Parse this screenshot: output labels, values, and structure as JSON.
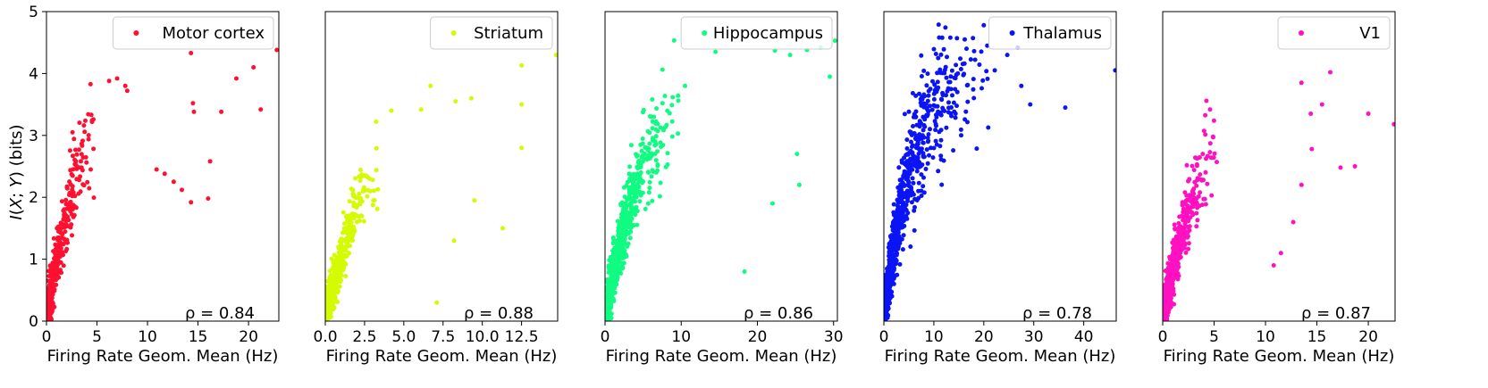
{
  "shared": {
    "ylabel": "I(X; Y) (bits)",
    "xlabel": "Firing Rate Geom. Mean (Hz)",
    "ylim": [
      0,
      5
    ],
    "yticks": [
      "0",
      "1",
      "2",
      "3",
      "4",
      "5"
    ]
  },
  "chart_data": [
    {
      "type": "scatter",
      "title": "",
      "xlabel": "Firing Rate Geom. Mean (Hz)",
      "ylabel": "I(X; Y) (bits)",
      "xlim": [
        0,
        23
      ],
      "ylim": [
        0,
        5
      ],
      "xticks": [
        0,
        5,
        10,
        15,
        20
      ],
      "xtick_labels": [
        "0",
        "5",
        "10",
        "15",
        "20"
      ],
      "legend": "top-right",
      "annotation": "ρ = 0.84",
      "series": [
        {
          "name": "Motor cortex",
          "color": "#ff1030",
          "n": 700,
          "xmax": 23,
          "growth": 4.2,
          "decay": 4,
          "ymax": 4.3,
          "noise": 0.33,
          "shape": 0.6,
          "xscale": 1.4,
          "outliers": [
            [
              14.3,
              4.33
            ],
            [
              20.5,
              4.1
            ],
            [
              22.8,
              4.38
            ],
            [
              18.8,
              3.92
            ],
            [
              17.3,
              3.38
            ],
            [
              21.2,
              3.42
            ],
            [
              14.5,
              3.52
            ],
            [
              14.6,
              3.38
            ],
            [
              16.2,
              2.58
            ],
            [
              14.3,
              1.92
            ],
            [
              16,
              1.98
            ],
            [
              13.4,
              2.12
            ],
            [
              12.6,
              2.25
            ],
            [
              11.7,
              2.38
            ],
            [
              10.9,
              2.45
            ],
            [
              6.2,
              3.88
            ],
            [
              7,
              3.92
            ],
            [
              7.8,
              3.8
            ],
            [
              8,
              3.72
            ]
          ]
        }
      ]
    },
    {
      "type": "scatter",
      "title": "",
      "xlabel": "Firing Rate Geom. Mean (Hz)",
      "ylabel": "I(X; Y) (bits)",
      "xlim": [
        0,
        14.8
      ],
      "ylim": [
        0,
        5
      ],
      "xticks": [
        0,
        2.5,
        5,
        7.5,
        10,
        12.5
      ],
      "xtick_labels": [
        "0.0",
        "2.5",
        "5.0",
        "7.5",
        "10.0",
        "12.5"
      ],
      "legend": "top-right",
      "annotation": "ρ = 0.88",
      "series": [
        {
          "name": "Striatum",
          "color": "#d4fb00",
          "n": 650,
          "xmax": 14.8,
          "growth": 3.8,
          "decay": 3.2,
          "ymax": 3.9,
          "noise": 0.3,
          "shape": 0.5,
          "xscale": 1.2,
          "outliers": [
            [
              12.5,
              4.13
            ],
            [
              14.7,
              4.3
            ],
            [
              12.5,
              3.5
            ],
            [
              12.5,
              2.8
            ],
            [
              11.3,
              1.5
            ],
            [
              9.5,
              1.95
            ],
            [
              9.3,
              3.6
            ],
            [
              8.3,
              3.55
            ],
            [
              6.7,
              3.8
            ],
            [
              6.1,
              3.42
            ],
            [
              8.2,
              1.3
            ],
            [
              4.2,
              3.4
            ],
            [
              7.1,
              0.3
            ]
          ]
        }
      ]
    },
    {
      "type": "scatter",
      "title": "",
      "xlabel": "Firing Rate Geom. Mean (Hz)",
      "ylabel": "I(X; Y) (bits)",
      "xlim": [
        0,
        30.5
      ],
      "ylim": [
        0,
        5
      ],
      "xticks": [
        0,
        10,
        20,
        30
      ],
      "xtick_labels": [
        "0",
        "10",
        "20",
        "30"
      ],
      "legend": "top-right",
      "annotation": "ρ = 0.86",
      "series": [
        {
          "name": "Hippocampus",
          "color": "#10fb82",
          "n": 950,
          "xmax": 30.5,
          "growth": 8.5,
          "decay": 5.5,
          "ymax": 4.1,
          "noise": 0.32,
          "shape": 0.55,
          "xscale": 3.2,
          "outliers": [
            [
              30.2,
              4.53
            ],
            [
              28.3,
              4.42
            ],
            [
              26.5,
              4.38
            ],
            [
              24.3,
              4.3
            ],
            [
              22.3,
              4.37
            ],
            [
              29.5,
              3.95
            ],
            [
              25.2,
              2.7
            ],
            [
              25.5,
              2.2
            ],
            [
              22,
              1.9
            ],
            [
              18.3,
              0.8
            ],
            [
              14.5,
              4.35
            ],
            [
              10.5,
              3.8
            ]
          ]
        }
      ]
    },
    {
      "type": "scatter",
      "title": "",
      "xlabel": "Firing Rate Geom. Mean (Hz)",
      "ylabel": "I(X; Y) (bits)",
      "xlim": [
        0,
        46.5
      ],
      "ylim": [
        0,
        5
      ],
      "xticks": [
        0,
        10,
        20,
        30,
        40
      ],
      "xtick_labels": [
        "0",
        "10",
        "20",
        "30",
        "40"
      ],
      "legend": "top-right",
      "annotation": "ρ = 0.78",
      "series": [
        {
          "name": "Thalamus",
          "color": "#0a14f5",
          "n": 1000,
          "xmax": 46.5,
          "growth": 8.5,
          "decay": 6,
          "ymax": 4.2,
          "noise": 0.36,
          "shape": 0.75,
          "xscale": 5,
          "outliers": [
            [
              46.3,
              4.05
            ],
            [
              36.3,
              3.45
            ],
            [
              29.3,
              3.5
            ],
            [
              27.5,
              3.8
            ],
            [
              20,
              4.78
            ],
            [
              26.8,
              4.42
            ],
            [
              24.7,
              4.3
            ],
            [
              22.2,
              4.05
            ]
          ]
        }
      ]
    },
    {
      "type": "scatter",
      "title": "",
      "xlabel": "Firing Rate Geom. Mean (Hz)",
      "ylabel": "I(X; Y) (bits)",
      "xlim": [
        0,
        22.6
      ],
      "ylim": [
        0,
        5
      ],
      "xticks": [
        0,
        5,
        10,
        15,
        20
      ],
      "xtick_labels": [
        "0",
        "5",
        "10",
        "15",
        "20"
      ],
      "legend": "top-right",
      "annotation": "ρ = 0.87",
      "series": [
        {
          "name": "V1",
          "color": "#ff10c0",
          "n": 800,
          "xmax": 22.6,
          "growth": 5.5,
          "decay": 3.6,
          "ymax": 3.5,
          "noise": 0.3,
          "shape": 0.6,
          "xscale": 1.6,
          "outliers": [
            [
              22.5,
              3.18
            ],
            [
              20,
              3.35
            ],
            [
              16.3,
              4.02
            ],
            [
              15.5,
              3.5
            ],
            [
              14.4,
              3.35
            ],
            [
              13.5,
              3.85
            ],
            [
              18.7,
              2.5
            ],
            [
              17.3,
              2.48
            ],
            [
              14.5,
              2.78
            ],
            [
              13.5,
              2.2
            ],
            [
              12.7,
              1.6
            ],
            [
              11.5,
              1.1
            ],
            [
              10.8,
              0.9
            ]
          ]
        }
      ]
    }
  ]
}
